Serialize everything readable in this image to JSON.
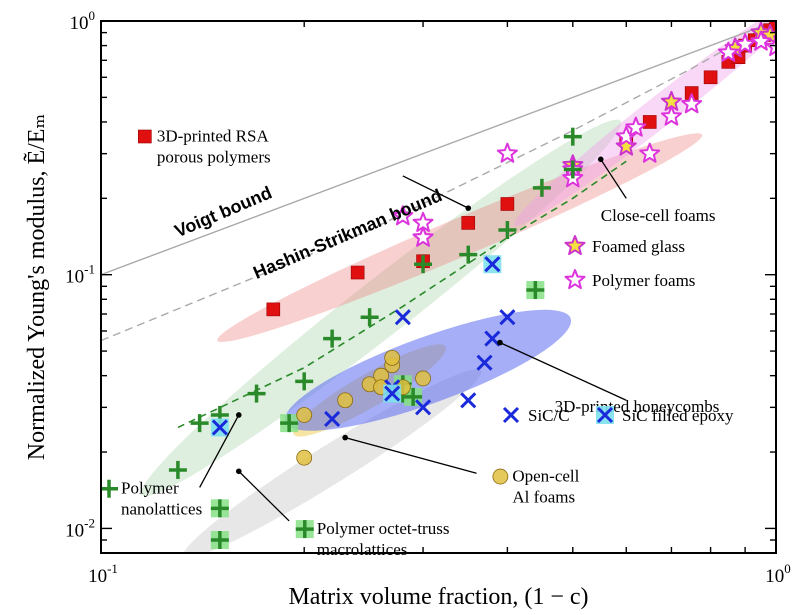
{
  "chart_data": {
    "type": "scatter",
    "xscale": "log",
    "yscale": "log",
    "xlim": [
      0.1,
      1.0
    ],
    "ylim": [
      0.008,
      1.0
    ],
    "xlabel": "Matrix volume fraction, (1 − c)",
    "ylabel": "Normalized Young's modulus, Ẽ/Eₘ",
    "x_major_ticks": [
      {
        "value": 0.1,
        "base": "10",
        "exp": "-1"
      },
      {
        "value": 1.0,
        "base": "10",
        "exp": "0"
      }
    ],
    "y_major_ticks": [
      {
        "value": 0.01,
        "base": "10",
        "exp": "-2"
      },
      {
        "value": 0.1,
        "base": "10",
        "exp": "-1"
      },
      {
        "value": 1.0,
        "base": "10",
        "exp": "0"
      }
    ],
    "legend_placement": "inside-right",
    "bounds": [
      {
        "name": "Voigt bound",
        "color": "#aaaaaa",
        "dash": "solid",
        "points": [
          [
            0.1,
            0.1
          ],
          [
            1.0,
            1.0
          ]
        ]
      },
      {
        "name": "Hashin-Strikman bound",
        "color": "#aaaaaa",
        "dash": "dashed",
        "points": [
          [
            0.1,
            0.055
          ],
          [
            0.25,
            0.15
          ],
          [
            0.5,
            0.37
          ],
          [
            0.75,
            0.65
          ],
          [
            1.0,
            1.0
          ]
        ]
      }
    ],
    "trend_line": {
      "color": "#2a8a2a",
      "points": [
        [
          0.13,
          0.025
        ],
        [
          0.2,
          0.043
        ],
        [
          0.28,
          0.075
        ],
        [
          0.4,
          0.14
        ],
        [
          0.5,
          0.2
        ],
        [
          0.6,
          0.28
        ]
      ]
    },
    "regions": [
      {
        "series": "Polymer nanolattices",
        "color": "#8bc48b",
        "opacity": 0.28,
        "center": [
          0.26,
          0.074
        ],
        "rx": 0.45,
        "ry": 0.11,
        "angle": -38
      },
      {
        "series": "3D-printed RSA porous polymers",
        "color": "#ef7777",
        "opacity": 0.35,
        "center": [
          0.34,
          0.14
        ],
        "rx": 0.39,
        "ry": 0.075,
        "angle": -23
      },
      {
        "series": "Close-cell foams",
        "color": "#f09be9",
        "opacity": 0.4,
        "center": [
          0.68,
          0.45
        ],
        "rx": 0.28,
        "ry": 0.06,
        "angle": -38
      },
      {
        "series": "Polymer octet-truss macrolattices",
        "color": "#bbbbbb",
        "opacity": 0.35,
        "center": [
          0.22,
          0.018
        ],
        "rx": 0.26,
        "ry": 0.075,
        "angle": -32
      },
      {
        "series": "Open-cell Al foams",
        "color": "#f0cc4a",
        "opacity": 0.5,
        "center": [
          0.25,
          0.035
        ],
        "rx": 0.13,
        "ry": 0.065,
        "angle": -30
      },
      {
        "series": "3D-printed honeycombs",
        "color": "#5b6cf0",
        "opacity": 0.55,
        "center": [
          0.305,
          0.042
        ],
        "rx": 0.225,
        "ry": 0.13,
        "angle": -20
      }
    ],
    "series": [
      {
        "name": "3D-printed RSA porous polymers",
        "marker": "square",
        "color": "#e01010",
        "points": [
          [
            0.18,
            0.073
          ],
          [
            0.24,
            0.102
          ],
          [
            0.3,
            0.113
          ],
          [
            0.35,
            0.16
          ],
          [
            0.4,
            0.19
          ],
          [
            0.5,
            0.26
          ],
          [
            0.6,
            0.34
          ],
          [
            0.65,
            0.4
          ],
          [
            0.75,
            0.52
          ],
          [
            0.8,
            0.6
          ],
          [
            0.85,
            0.69
          ],
          [
            0.88,
            0.72
          ],
          [
            0.9,
            0.8
          ],
          [
            0.93,
            0.84
          ],
          [
            0.96,
            0.88
          ],
          [
            0.98,
            0.92
          ],
          [
            1.0,
            0.95
          ]
        ]
      },
      {
        "name": "Foamed glass",
        "marker": "star",
        "color": "#f5e040",
        "edge": "#cc33cc",
        "points": [
          [
            0.3,
            0.14
          ],
          [
            0.5,
            0.27
          ],
          [
            0.6,
            0.32
          ],
          [
            0.7,
            0.48
          ],
          [
            0.87,
            0.78
          ],
          [
            0.95,
            0.9
          ],
          [
            0.98,
            0.88
          ]
        ]
      },
      {
        "name": "Polymer foams",
        "marker": "star",
        "color": "#ffffff",
        "edge": "#dd33dd",
        "points": [
          [
            0.28,
            0.17
          ],
          [
            0.3,
            0.16
          ],
          [
            0.3,
            0.14
          ],
          [
            0.4,
            0.3
          ],
          [
            0.5,
            0.26
          ],
          [
            0.5,
            0.24
          ],
          [
            0.6,
            0.35
          ],
          [
            0.62,
            0.38
          ],
          [
            0.65,
            0.3
          ],
          [
            0.7,
            0.42
          ],
          [
            0.75,
            0.47
          ],
          [
            0.85,
            0.75
          ],
          [
            0.9,
            0.81
          ],
          [
            0.95,
            0.83
          ],
          [
            1.0,
            0.79
          ]
        ]
      },
      {
        "name": "Polymer nanolattices",
        "marker": "plus",
        "color": "#2a8a2a",
        "points": [
          [
            0.13,
            0.017
          ],
          [
            0.14,
            0.026
          ],
          [
            0.15,
            0.028
          ],
          [
            0.17,
            0.034
          ],
          [
            0.2,
            0.038
          ],
          [
            0.22,
            0.056
          ],
          [
            0.25,
            0.068
          ],
          [
            0.3,
            0.11
          ],
          [
            0.35,
            0.12
          ],
          [
            0.4,
            0.15
          ],
          [
            0.45,
            0.22
          ],
          [
            0.5,
            0.26
          ],
          [
            0.5,
            0.35
          ]
        ]
      },
      {
        "name": "Polymer octet-truss macrolattices",
        "marker": "plus-box",
        "color": "#2a8a2a",
        "box": "#86e086",
        "points": [
          [
            0.15,
            0.009
          ],
          [
            0.15,
            0.012
          ],
          [
            0.19,
            0.026
          ],
          [
            0.28,
            0.037
          ],
          [
            0.28,
            0.034
          ],
          [
            0.29,
            0.033
          ],
          [
            0.44,
            0.087
          ]
        ]
      },
      {
        "name": "Open-cell Al foams",
        "marker": "circle",
        "color": "#e0c040",
        "edge": "#8a6a10",
        "points": [
          [
            0.2,
            0.019
          ],
          [
            0.2,
            0.028
          ],
          [
            0.23,
            0.032
          ],
          [
            0.25,
            0.037
          ],
          [
            0.26,
            0.04
          ],
          [
            0.26,
            0.036
          ],
          [
            0.27,
            0.044
          ],
          [
            0.27,
            0.047
          ],
          [
            0.28,
            0.036
          ],
          [
            0.3,
            0.039
          ]
        ]
      },
      {
        "name": "SiC/C",
        "marker": "x",
        "color": "#1a2adb",
        "points": [
          [
            0.22,
            0.027
          ],
          [
            0.27,
            0.036
          ],
          [
            0.28,
            0.068
          ],
          [
            0.3,
            0.03
          ],
          [
            0.35,
            0.032
          ],
          [
            0.37,
            0.045
          ],
          [
            0.38,
            0.056
          ],
          [
            0.4,
            0.068
          ]
        ]
      },
      {
        "name": "SiC filled epoxy",
        "marker": "x-box",
        "color": "#1a2adb",
        "box": "#7ee0ee",
        "points": [
          [
            0.15,
            0.025
          ],
          [
            0.27,
            0.034
          ],
          [
            0.38,
            0.11
          ]
        ]
      }
    ],
    "annotations": [
      {
        "text": "Voigt bound",
        "style": "bold",
        "color": "#000000",
        "x": 0.13,
        "y": 0.14,
        "angle": -23
      },
      {
        "text": "Hashin-Strikman bound",
        "style": "bold",
        "color": "#000000",
        "x": 0.17,
        "y": 0.096,
        "angle": -23
      },
      {
        "lines": [
          "3D-printed RSA",
          "porous polymers"
        ],
        "legend_marker": "square",
        "text_x": 0.113,
        "text_y": 0.335,
        "arrow_from": [
          0.28,
          0.245
        ],
        "arrow_to": [
          0.35,
          0.183
        ]
      },
      {
        "lines": [
          "Close-cell foams"
        ],
        "text_x": 0.55,
        "text_y": 0.163,
        "arrow_from": [
          0.6,
          0.2
        ],
        "arrow_to": [
          0.55,
          0.285
        ]
      },
      {
        "lines": [
          "3D-printed honeycombs"
        ],
        "text_x": 0.47,
        "text_y": 0.0287,
        "arrow_from": [
          0.6,
          0.032
        ],
        "arrow_to": [
          0.39,
          0.054
        ]
      },
      {
        "lines": [
          "Polymer",
          "nanolattices"
        ],
        "legend_marker": "plus",
        "text_x": 0.1,
        "text_y": 0.0137,
        "arrow_from": [
          0.14,
          0.0145
        ],
        "arrow_to": [
          0.16,
          0.028
        ]
      },
      {
        "lines": [
          "Open-cell",
          "Al foams"
        ],
        "legend_marker": "circle",
        "text_x": 0.38,
        "text_y": 0.0153,
        "arrow_from": [
          0.36,
          0.0165
        ],
        "arrow_to": [
          0.23,
          0.0228
        ]
      },
      {
        "lines": [
          "Polymer octet-truss",
          "macrolattices"
        ],
        "legend_marker": "plus-box",
        "text_x": 0.195,
        "text_y": 0.0095,
        "arrow_from": [
          0.19,
          0.0107
        ],
        "arrow_to": [
          0.16,
          0.0168
        ]
      }
    ],
    "legend": [
      {
        "label": "Foamed glass",
        "marker": "star-yellow"
      },
      {
        "label": "Polymer foams",
        "marker": "star-white"
      },
      {
        "label": "SiC/C",
        "marker": "x"
      },
      {
        "label": "SiC filled epoxy",
        "marker": "x-box"
      }
    ]
  }
}
